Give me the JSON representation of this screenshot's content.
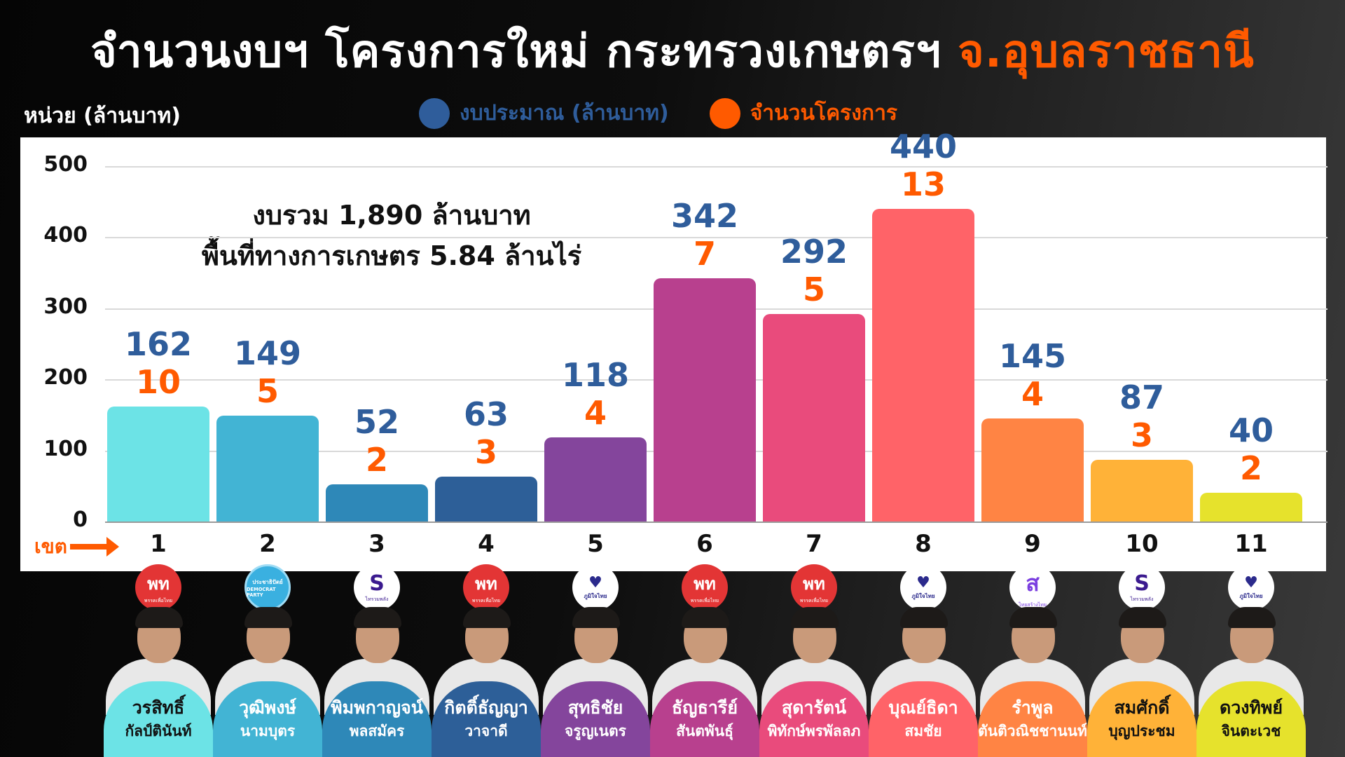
{
  "title": {
    "main": "จำนวนงบฯ โครงการใหม่ กระทรวงเกษตรฯ",
    "highlight": "จ.อุบลราชธานี"
  },
  "unit_label": "หน่วย (ล้านบาท)",
  "legend": [
    {
      "label": "งบประมาณ (ล้านบาท)",
      "color": "#2f5d9b"
    },
    {
      "label": "จำนวนโครงการ",
      "color": "#ff5a00"
    }
  ],
  "summary": {
    "line1": "งบรวม 1,890 ล้านบาท",
    "line2": "พื้นที่ทางการเกษตร 5.84 ล้านไร่"
  },
  "x_axis_label": "เขต",
  "y_ticks": [
    "500",
    "400",
    "300",
    "200",
    "100",
    "0"
  ],
  "chart_data": {
    "type": "bar",
    "title": "จำนวนงบฯ โครงการใหม่ กระทรวงเกษตรฯ จ.อุบลราชธานี",
    "xlabel": "เขต",
    "ylabel": "หน่วย (ล้านบาท)",
    "ylim": [
      0,
      500
    ],
    "yticks": [
      0,
      100,
      200,
      300,
      400,
      500
    ],
    "grid": true,
    "legend_position": "top",
    "categories": [
      "1",
      "2",
      "3",
      "4",
      "5",
      "6",
      "7",
      "8",
      "9",
      "10",
      "11"
    ],
    "series": [
      {
        "name": "งบประมาณ (ล้านบาท)",
        "color": "#2f5d9b",
        "values": [
          162,
          149,
          52,
          63,
          118,
          342,
          292,
          440,
          145,
          87,
          40
        ]
      },
      {
        "name": "จำนวนโครงการ",
        "color": "#ff5a00",
        "values": [
          10,
          5,
          2,
          3,
          4,
          7,
          5,
          13,
          4,
          3,
          2
        ]
      }
    ],
    "bar_colors": [
      "#6ce3e6",
      "#42b4d4",
      "#2e88b8",
      "#2d5f98",
      "#84459c",
      "#b8408e",
      "#e94b7c",
      "#ff6368",
      "#ff8444",
      "#ffb238",
      "#e6e22c"
    ],
    "annotations": [
      "งบรวม 1,890 ล้านบาท",
      "พื้นที่ทางการเกษตร 5.84 ล้านไร่"
    ]
  },
  "districts": [
    {
      "num": "1",
      "budget": "162",
      "projects": "10",
      "party": "ptp",
      "party_text": "พท",
      "party_sub": "พรรคเพื่อไทย",
      "first": "วรสิทธิ์",
      "last": "กัลป์ตินันท์",
      "color": "#6ce3e6",
      "text": "#111111"
    },
    {
      "num": "2",
      "budget": "149",
      "projects": "5",
      "party": "dem",
      "party_text": "ประชาธิปัตย์",
      "party_sub": "DEMOCRAT PARTY",
      "first": "วุฒิพงษ์",
      "last": "นามบุตร",
      "color": "#42b4d4",
      "text": "#ffffff"
    },
    {
      "num": "3",
      "budget": "52",
      "projects": "2",
      "party": "rtsp",
      "party_text": "S",
      "party_sub": "ไทรวมพลัง",
      "first": "พิมพกาญจน์",
      "last": "พลสมัคร",
      "color": "#2e88b8",
      "text": "#ffffff"
    },
    {
      "num": "4",
      "budget": "63",
      "projects": "3",
      "party": "ptp",
      "party_text": "พท",
      "party_sub": "พรรคเพื่อไทย",
      "first": "กิตติ์ธัญญา",
      "last": "วาจาดี",
      "color": "#2d5f98",
      "text": "#ffffff"
    },
    {
      "num": "5",
      "budget": "118",
      "projects": "4",
      "party": "bjt",
      "party_text": "♥",
      "party_sub": "ภูมิใจไทย",
      "first": "สุทธิชัย",
      "last": "จรูญเนตร",
      "color": "#84459c",
      "text": "#ffffff"
    },
    {
      "num": "6",
      "budget": "342",
      "projects": "7",
      "party": "ptp",
      "party_text": "พท",
      "party_sub": "พรรคเพื่อไทย",
      "first": "ธัญธารีย์",
      "last": "สันตพันธุ์",
      "color": "#b8408e",
      "text": "#ffffff"
    },
    {
      "num": "7",
      "budget": "292",
      "projects": "5",
      "party": "ptp",
      "party_text": "พท",
      "party_sub": "พรรคเพื่อไทย",
      "first": "สุดารัตน์",
      "last": "พิทักษ์พรพัลลภ",
      "color": "#e94b7c",
      "text": "#ffffff"
    },
    {
      "num": "8",
      "budget": "440",
      "projects": "13",
      "party": "bjt",
      "party_text": "♥",
      "party_sub": "ภูมิใจไทย",
      "first": "บุณย์ธิดา",
      "last": "สมชัย",
      "color": "#ff6368",
      "text": "#ffffff"
    },
    {
      "num": "9",
      "budget": "145",
      "projects": "4",
      "party": "tst",
      "party_text": "ส",
      "party_sub": "ไทยสร้างไทย",
      "first": "รำพูล",
      "last": "ตันติวณิชชานนท์",
      "color": "#ff8444",
      "text": "#ffffff"
    },
    {
      "num": "10",
      "budget": "87",
      "projects": "3",
      "party": "rtsp",
      "party_text": "S",
      "party_sub": "ไทรวมพลัง",
      "first": "สมศักดิ์",
      "last": "บุญประชม",
      "color": "#ffb238",
      "text": "#111111"
    },
    {
      "num": "11",
      "budget": "40",
      "projects": "2",
      "party": "bjt",
      "party_text": "♥",
      "party_sub": "ภูมิใจไทย",
      "first": "ดวงทิพย์",
      "last": "จินตะเวช",
      "color": "#e6e22c",
      "text": "#111111"
    }
  ]
}
